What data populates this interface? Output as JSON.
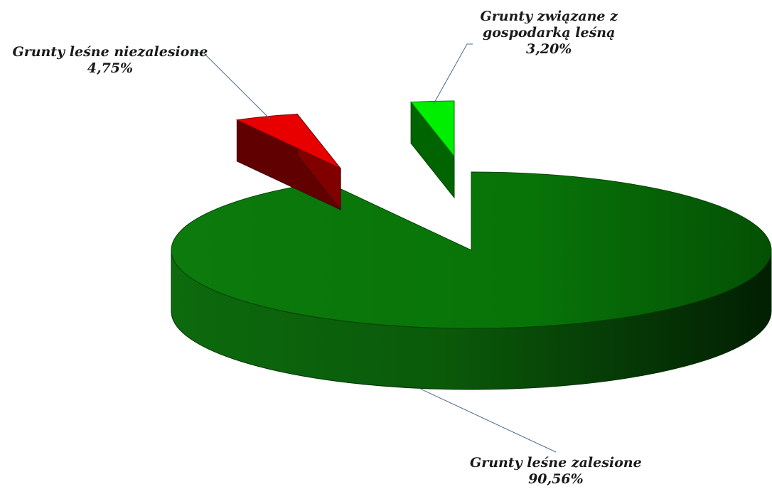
{
  "chart_data": {
    "type": "pie",
    "style": "3d-exploded",
    "title": "",
    "legend": "none",
    "slices": [
      {
        "name": "Grunty leśne zalesione",
        "label_lines": [
          "Grunty leśne zalesione"
        ],
        "value": 90.56,
        "value_label": "90,56%",
        "color": "#007a00",
        "exploded": false
      },
      {
        "name": "Grunty leśne niezalesione",
        "label_lines": [
          "Grunty leśne niezalesione"
        ],
        "value": 4.75,
        "value_label": "4,75%",
        "color": "#e80000",
        "exploded": true
      },
      {
        "name": "Grunty związane z gospodarką leśną",
        "label_lines": [
          "Grunty związane z",
          "gospodarką leśną"
        ],
        "value": 3.2,
        "value_label": "3,20%",
        "color": "#00ee00",
        "exploded": true
      }
    ]
  }
}
